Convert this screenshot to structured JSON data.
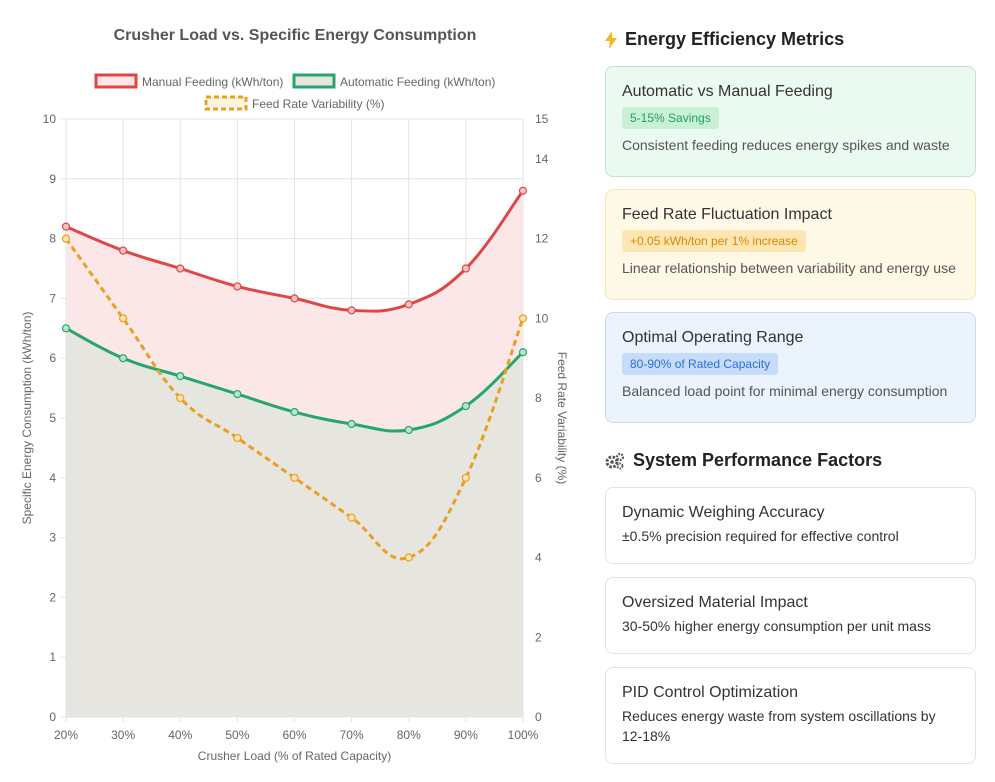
{
  "chart_data": {
    "type": "line",
    "title": "Crusher Load vs. Specific Energy Consumption",
    "xlabel": "Crusher Load (% of Rated Capacity)",
    "ylabel": "Specific Energy Consumption (kWh/ton)",
    "y2label": "Feed Rate Variability (%)",
    "categories": [
      "20%",
      "30%",
      "40%",
      "50%",
      "60%",
      "70%",
      "80%",
      "90%",
      "100%"
    ],
    "ylim": [
      0,
      10
    ],
    "y2lim": [
      0,
      15
    ],
    "yticks": [
      "0",
      "1",
      "2",
      "3",
      "4",
      "5",
      "6",
      "7",
      "8",
      "9",
      "10"
    ],
    "y2ticks": [
      "0",
      "2",
      "4",
      "6",
      "8",
      "10",
      "12",
      "14",
      "15"
    ],
    "grid": true,
    "legend_position": "top",
    "series": [
      {
        "name": "Manual Feeding (kWh/ton)",
        "axis": "left",
        "color": "#e04646",
        "fill": "#fbe7e7",
        "values": [
          8.2,
          7.8,
          7.5,
          7.2,
          7.0,
          6.8,
          6.9,
          7.5,
          8.8
        ]
      },
      {
        "name": "Automatic Feeding (kWh/ton)",
        "axis": "left",
        "color": "#26a66b",
        "fill": "#e6e5e0",
        "values": [
          6.5,
          6.0,
          5.7,
          5.4,
          5.1,
          4.9,
          4.8,
          5.2,
          6.1
        ]
      },
      {
        "name": "Feed Rate Variability (%)",
        "axis": "right",
        "color": "#e8a020",
        "dashed": true,
        "values": [
          12,
          10,
          8,
          7,
          6,
          5,
          4,
          6,
          10
        ]
      }
    ]
  },
  "efficiency": {
    "title": "Energy Efficiency Metrics",
    "icon": "lightning-icon",
    "cards": [
      {
        "title": "Automatic vs Manual Feeding",
        "badge": "5-15% Savings",
        "desc": "Consistent feeding reduces energy spikes and waste",
        "color": "#26a66b"
      },
      {
        "title": "Feed Rate Fluctuation Impact",
        "badge": "+0.05 kWh/ton per 1% increase",
        "desc": "Linear relationship between variability and energy use",
        "color": "#e8a020"
      },
      {
        "title": "Optimal Operating Range",
        "badge": "80-90% of Rated Capacity",
        "desc": "Balanced load point for minimal energy consumption",
        "color": "#2c6fd0"
      }
    ]
  },
  "performance": {
    "title": "System Performance Factors",
    "icon": "gears-icon",
    "cards": [
      {
        "title": "Dynamic Weighing Accuracy",
        "desc": "±0.5% precision required for effective control"
      },
      {
        "title": "Oversized Material Impact",
        "desc": "30-50% higher energy consumption per unit mass"
      },
      {
        "title": "PID Control Optimization",
        "desc": "Reduces energy waste from system oscillations by 12-18%"
      }
    ]
  }
}
